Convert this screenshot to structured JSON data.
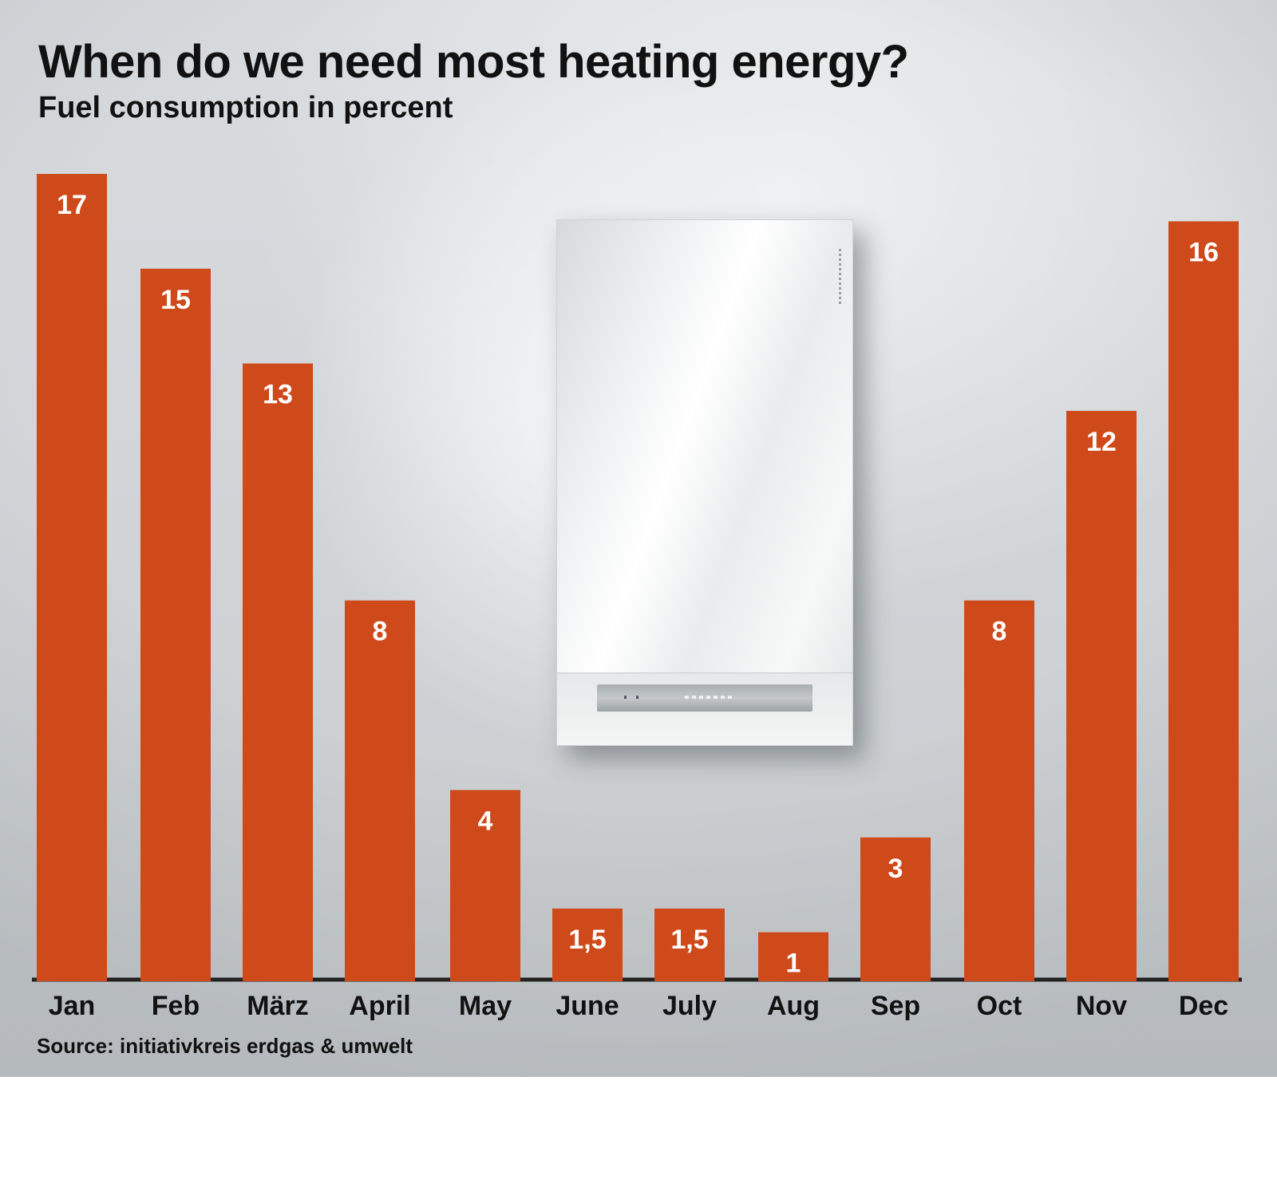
{
  "title": "When do we need most heating energy?",
  "subtitle": "Fuel consumption in percent",
  "source": "Source: initiativkreis erdgas & umwelt",
  "colors": {
    "bar": "#cf4a1a",
    "baseline": "#222222",
    "value_text": "#ffffff",
    "label_text": "#111111"
  },
  "chart_data": {
    "type": "bar",
    "categories": [
      "Jan",
      "Feb",
      "März",
      "April",
      "May",
      "June",
      "July",
      "Aug",
      "Sep",
      "Oct",
      "Nov",
      "Dec"
    ],
    "values": [
      17,
      15,
      13,
      8,
      4,
      1.5,
      1.5,
      1,
      3,
      8,
      12,
      16
    ],
    "value_labels": [
      "17",
      "15",
      "13",
      "8",
      "4",
      "1,5",
      "1,5",
      "1",
      "3",
      "8",
      "12",
      "16"
    ],
    "ylim": [
      0,
      17
    ],
    "grid": false,
    "legend": "none"
  }
}
